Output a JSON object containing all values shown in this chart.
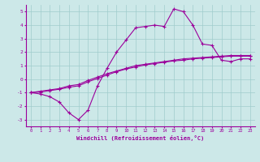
{
  "xlabel": "Windchill (Refroidissement éolien,°C)",
  "bg_color": "#cce8e8",
  "line_color": "#9b009b",
  "grid_color": "#a0cccc",
  "line1_x": [
    0,
    1,
    2,
    3,
    4,
    5,
    6,
    7,
    8,
    9,
    10,
    11,
    12,
    13,
    14,
    15,
    16,
    17,
    18,
    19,
    20,
    21,
    22,
    23
  ],
  "line1_y": [
    -1.0,
    -1.1,
    -1.3,
    -1.7,
    -2.5,
    -3.0,
    -2.3,
    -0.5,
    0.8,
    2.0,
    2.9,
    3.8,
    3.9,
    4.0,
    3.9,
    5.2,
    5.0,
    4.0,
    2.6,
    2.5,
    1.4,
    1.3,
    1.5,
    1.5
  ],
  "line2_x": [
    0,
    1,
    2,
    3,
    4,
    5,
    6,
    7,
    8,
    9,
    10,
    11,
    12,
    13,
    14,
    15,
    16,
    17,
    18,
    19,
    20,
    21,
    22,
    23
  ],
  "line2_y": [
    -1.0,
    -0.9,
    -0.8,
    -0.7,
    -0.5,
    -0.4,
    -0.1,
    0.15,
    0.4,
    0.6,
    0.8,
    1.0,
    1.1,
    1.2,
    1.3,
    1.4,
    1.5,
    1.55,
    1.6,
    1.65,
    1.7,
    1.75,
    1.75,
    1.75
  ],
  "line3_x": [
    0,
    1,
    2,
    3,
    4,
    5,
    6,
    7,
    8,
    9,
    10,
    11,
    12,
    13,
    14,
    15,
    16,
    17,
    18,
    19,
    20,
    21,
    22,
    23
  ],
  "line3_y": [
    -1.0,
    -0.95,
    -0.85,
    -0.75,
    -0.6,
    -0.5,
    -0.2,
    0.05,
    0.3,
    0.55,
    0.75,
    0.9,
    1.05,
    1.15,
    1.25,
    1.35,
    1.4,
    1.5,
    1.55,
    1.6,
    1.65,
    1.7,
    1.7,
    1.7
  ],
  "xlim": [
    -0.5,
    23.5
  ],
  "ylim": [
    -3.5,
    5.5
  ],
  "xticks": [
    0,
    1,
    2,
    3,
    4,
    5,
    6,
    7,
    8,
    9,
    10,
    11,
    12,
    13,
    14,
    15,
    16,
    17,
    18,
    19,
    20,
    21,
    22,
    23
  ],
  "yticks": [
    -3,
    -2,
    -1,
    0,
    1,
    2,
    3,
    4,
    5
  ]
}
